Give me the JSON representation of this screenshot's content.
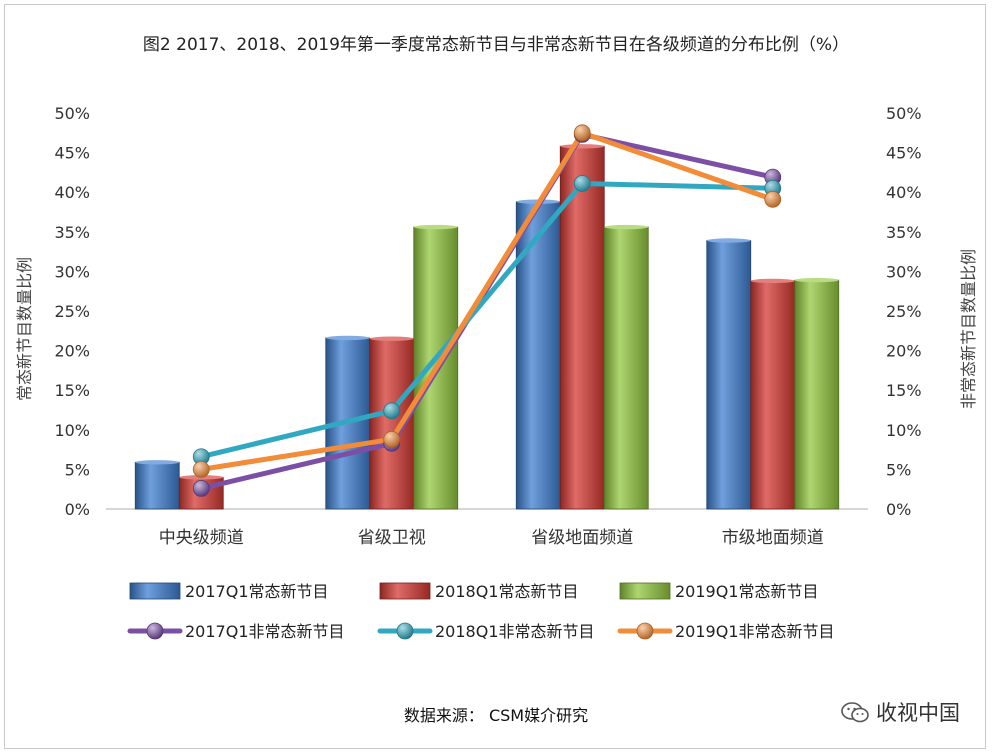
{
  "figure_title": "图2    2017、2018、2019年第一季度常态新节目与非常态新节目在各级频道的分布比例（%）",
  "source_text": "数据来源：  CSM媒介研究",
  "watermark_text": "收视中国",
  "chart_data": {
    "type": "bar",
    "categories": [
      "中央级频道",
      "省级卫视",
      "省级地面频道",
      "市级地面频道"
    ],
    "ylabel": "常态新节目数量比例",
    "y2label": "非常态新节目数量比例",
    "ylim": [
      0,
      50
    ],
    "y2lim": [
      0,
      50
    ],
    "yticks": [
      "0%",
      "5%",
      "10%",
      "15%",
      "20%",
      "25%",
      "30%",
      "35%",
      "40%",
      "45%",
      "50%"
    ],
    "grid": false,
    "legend_position": "bottom",
    "bar_series": [
      {
        "name": "2017Q1常态新节目",
        "values": [
          5.9,
          21.6,
          38.8,
          33.9
        ],
        "color": "#3F7FD1"
      },
      {
        "name": "2018Q1常态新节目",
        "values": [
          4.0,
          21.5,
          45.8,
          28.8
        ],
        "color": "#D63A34"
      },
      {
        "name": "2019Q1常态新节目",
        "values": [
          0,
          35.6,
          35.6,
          28.9
        ],
        "color": "#93C840"
      }
    ],
    "line_series": [
      {
        "name": "2017Q1非常态新节目",
        "values": [
          2.6,
          8.3,
          47.3,
          41.9
        ],
        "color": "#7B4FA6",
        "axis": "right"
      },
      {
        "name": "2018Q1非常态新节目",
        "values": [
          6.6,
          12.4,
          41.1,
          40.5
        ],
        "color": "#31A8C1",
        "axis": "right"
      },
      {
        "name": "2019Q1非常态新节目",
        "values": [
          5.0,
          8.8,
          47.5,
          39.1
        ],
        "color": "#F28C38",
        "axis": "right"
      }
    ]
  }
}
